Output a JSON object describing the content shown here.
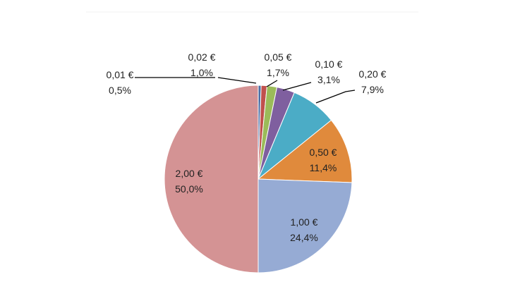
{
  "chart_data": {
    "type": "pie",
    "title": "",
    "categories": [
      "0,01 €",
      "0,02 €",
      "0,05 €",
      "0,10 €",
      "0,20 €",
      "0,50 €",
      "1,00 €",
      "2,00 €"
    ],
    "values": [
      0.5,
      1.0,
      1.7,
      3.1,
      7.9,
      11.4,
      24.4,
      50.0
    ],
    "percent_labels": [
      "0,5%",
      "1,0%",
      "1,7%",
      "3,1%",
      "7,9%",
      "11,4%",
      "24,4%",
      "50,0%"
    ],
    "colors": [
      "#4a6fa5",
      "#c0504d",
      "#9bbb59",
      "#7f5f9f",
      "#4bacc6",
      "#e08a3c",
      "#96abd4",
      "#d49394"
    ],
    "start_angle": "12 o'clock",
    "direction": "clockwise",
    "legend": "none"
  }
}
